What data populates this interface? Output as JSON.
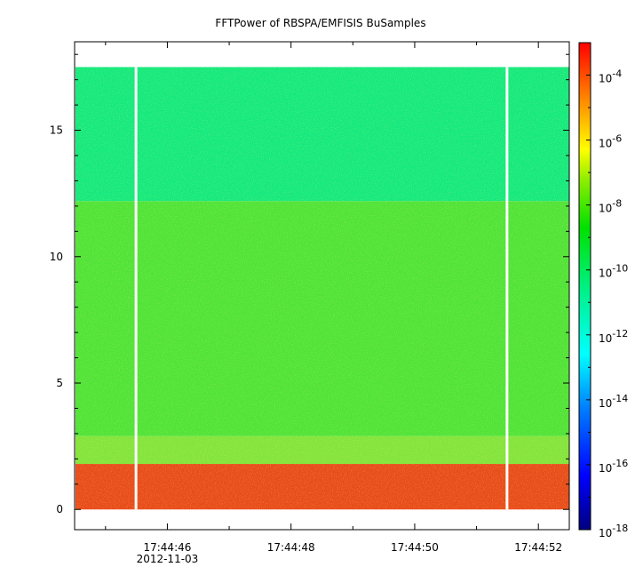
{
  "chart_data": {
    "type": "heatmap",
    "title": "FFTPower of RBSPA/EMFISIS  BuSamples",
    "xlabel": "",
    "ylabel": "",
    "x_range": [
      "17:44:44.5",
      "17:44:52.5"
    ],
    "x_ticks": [
      {
        "time": "17:44:46",
        "date": "2012-11-03"
      },
      {
        "time": "17:44:48",
        "date": ""
      },
      {
        "time": "17:44:50",
        "date": ""
      },
      {
        "time": "17:44:52",
        "date": ""
      }
    ],
    "ylim": [
      -0.8,
      18.5
    ],
    "y_ticks": [
      {
        "value": 0,
        "label": "0"
      },
      {
        "value": 5,
        "label": "5"
      },
      {
        "value": 10,
        "label": "10"
      },
      {
        "value": 15,
        "label": "15"
      }
    ],
    "data_y_range": [
      0,
      17.5
    ],
    "data_gaps_time": [
      "17:44:45.5",
      "17:44:51.5"
    ],
    "bands": [
      {
        "y_range": [
          0,
          1.8
        ],
        "log10_power": -5.2,
        "color": "#e84a1c"
      },
      {
        "y_range": [
          1.8,
          2.9
        ],
        "log10_power": -9.5,
        "color": "#82e43e"
      },
      {
        "y_range": [
          2.9,
          12.2
        ],
        "log10_power": -10.0,
        "color": "#4ee33a"
      },
      {
        "y_range": [
          12.2,
          17.5
        ],
        "log10_power": -11.3,
        "color": "#12e980"
      }
    ],
    "colorbar": {
      "scale": "log",
      "range": [
        1e-18,
        0.001
      ],
      "tick_labels": [
        {
          "exponent": -18,
          "label": "10",
          "sup": "-18"
        },
        {
          "exponent": -16,
          "label": "10",
          "sup": "-16"
        },
        {
          "exponent": -14,
          "label": "10",
          "sup": "-14"
        },
        {
          "exponent": -12,
          "label": "10",
          "sup": "-12"
        },
        {
          "exponent": -10,
          "label": "10",
          "sup": "-10"
        },
        {
          "exponent": -8,
          "label": "10",
          "sup": "-8"
        },
        {
          "exponent": -6,
          "label": "10",
          "sup": "-6"
        },
        {
          "exponent": -4,
          "label": "10",
          "sup": "-4"
        }
      ],
      "colors": [
        "#00007f",
        "#0000ff",
        "#007fff",
        "#00ffff",
        "#00ff7f",
        "#00ff00",
        "#7fff00",
        "#ffff00",
        "#ff7f00",
        "#ff0000"
      ]
    }
  }
}
